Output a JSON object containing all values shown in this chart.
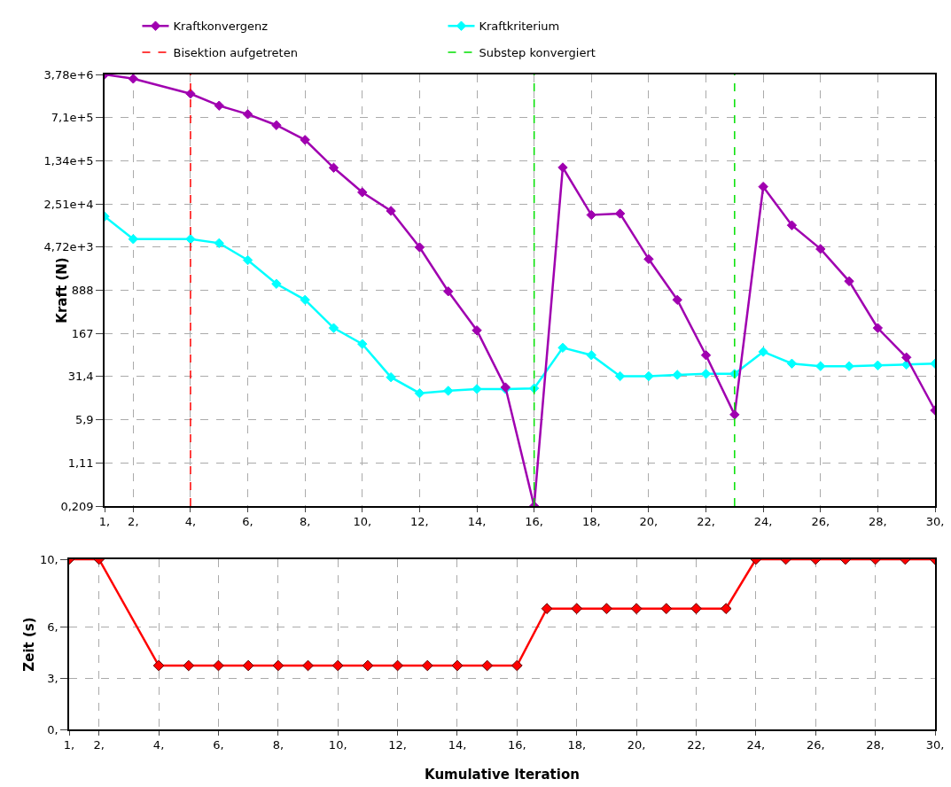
{
  "chart_data": [
    {
      "type": "line",
      "ylabel": "Kraft (N)",
      "log": "y",
      "grid": true,
      "legend": "top",
      "marker": "diamond",
      "line_style": "solid",
      "x": [
        1,
        2,
        4,
        5,
        6,
        7,
        8,
        9,
        10,
        11,
        12,
        13,
        14,
        15,
        16,
        17,
        18,
        19,
        20,
        21,
        22,
        23,
        24,
        25,
        26,
        27,
        28,
        29,
        30
      ],
      "series": [
        {
          "name": "Kraftkonvergenz",
          "color": "#a000b0",
          "values": [
            3780000,
            3200000,
            1790000,
            1130000,
            810000,
            530000,
            300000,
            102000,
            39500,
            19200,
            4700,
            851,
            188,
            20.7,
            0.209,
            103000,
            16400,
            17300,
            2970,
            613,
            72,
            7.2,
            49000,
            11000,
            4400,
            1260,
            206,
            66,
            8.5
          ]
        },
        {
          "name": "Kraftkriterium",
          "color": "#00ffff",
          "values": [
            15500,
            6440,
            6440,
            5500,
            2850,
            1140,
            613,
            206,
            111,
            30.6,
            16.5,
            18.1,
            19.4,
            19.4,
            19.9,
            96,
            72,
            31.9,
            31.9,
            33.6,
            34.9,
            34.9,
            82,
            52,
            47,
            47,
            48.5,
            50,
            52
          ]
        }
      ],
      "ref_lines": [
        {
          "axis": "x",
          "value": 4,
          "label": "Bisektion aufgetreten",
          "color": "#ff0000",
          "line_style": "dashed"
        },
        {
          "axis": "x",
          "value": 16,
          "label": "Substep konvergiert",
          "color": "#00e000",
          "line_style": "dashed"
        },
        {
          "axis": "x",
          "value": 23,
          "color": "#00e000",
          "line_style": "dashed"
        }
      ],
      "xlim": [
        1,
        30
      ],
      "xticks": [
        {
          "value": 1,
          "label": "1,"
        },
        {
          "value": 2,
          "label": "2,"
        },
        {
          "value": 4,
          "label": "4,"
        },
        {
          "value": 6,
          "label": "6,"
        },
        {
          "value": 8,
          "label": "8,"
        },
        {
          "value": 10,
          "label": "10,"
        },
        {
          "value": 12,
          "label": "12,"
        },
        {
          "value": 14,
          "label": "14,"
        },
        {
          "value": 16,
          "label": "16,"
        },
        {
          "value": 18,
          "label": "18,"
        },
        {
          "value": 20,
          "label": "20,"
        },
        {
          "value": 22,
          "label": "22,"
        },
        {
          "value": 24,
          "label": "24,"
        },
        {
          "value": 26,
          "label": "26,"
        },
        {
          "value": 28,
          "label": "28,"
        },
        {
          "value": 30,
          "label": "30,"
        }
      ],
      "ylim": [
        0.209,
        3780000
      ],
      "yticks": [
        {
          "value": 0.209,
          "label": "0,209"
        },
        {
          "value": 1.11,
          "label": "1,11"
        },
        {
          "value": 5.9,
          "label": "5,9"
        },
        {
          "value": 31.4,
          "label": "31,4"
        },
        {
          "value": 167,
          "label": "167"
        },
        {
          "value": 888,
          "label": "888"
        },
        {
          "value": 4720,
          "label": "4,72e+3"
        },
        {
          "value": 25100,
          "label": "2,51e+4"
        },
        {
          "value": 134000,
          "label": "1,34e+5"
        },
        {
          "value": 710000,
          "label": "7,1e+5"
        },
        {
          "value": 3780000,
          "label": "3,78e+6"
        }
      ]
    },
    {
      "type": "line",
      "xlabel": "Kumulative Iteration",
      "ylabel": "Zeit (s)",
      "grid": true,
      "marker": "diamond",
      "line_style": "solid",
      "x": [
        1,
        2,
        4,
        5,
        6,
        7,
        8,
        9,
        10,
        11,
        12,
        13,
        14,
        15,
        16,
        17,
        18,
        19,
        20,
        21,
        22,
        23,
        24,
        25,
        26,
        27,
        28,
        29,
        30
      ],
      "series": [
        {
          "color": "#ff0000",
          "values": [
            10,
            10,
            3.75,
            3.75,
            3.75,
            3.75,
            3.75,
            3.75,
            3.75,
            3.75,
            3.75,
            3.75,
            3.75,
            3.75,
            3.75,
            7.1,
            7.1,
            7.1,
            7.1,
            7.1,
            7.1,
            7.1,
            10,
            10,
            10,
            10,
            10,
            10,
            10
          ]
        }
      ],
      "xlim": [
        1,
        30
      ],
      "xticks": [
        {
          "value": 1,
          "label": "1,"
        },
        {
          "value": 2,
          "label": "2,"
        },
        {
          "value": 4,
          "label": "4,"
        },
        {
          "value": 6,
          "label": "6,"
        },
        {
          "value": 8,
          "label": "8,"
        },
        {
          "value": 10,
          "label": "10,"
        },
        {
          "value": 12,
          "label": "12,"
        },
        {
          "value": 14,
          "label": "14,"
        },
        {
          "value": 16,
          "label": "16,"
        },
        {
          "value": 18,
          "label": "18,"
        },
        {
          "value": 20,
          "label": "20,"
        },
        {
          "value": 22,
          "label": "22,"
        },
        {
          "value": 24,
          "label": "24,"
        },
        {
          "value": 26,
          "label": "26,"
        },
        {
          "value": 28,
          "label": "28,"
        },
        {
          "value": 30,
          "label": "30,"
        }
      ],
      "ylim": [
        0,
        10
      ],
      "yticks": [
        {
          "value": 0,
          "label": "0,"
        },
        {
          "value": 3,
          "label": "3,"
        },
        {
          "value": 6,
          "label": "6,"
        },
        {
          "value": 10,
          "label": "10,"
        }
      ]
    }
  ]
}
